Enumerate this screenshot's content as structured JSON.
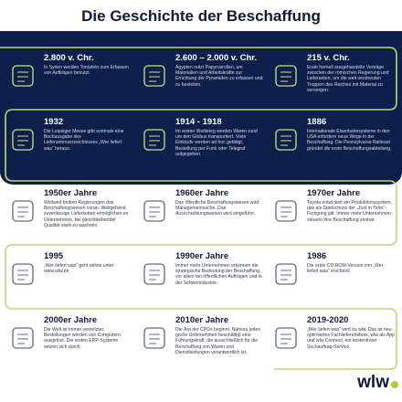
{
  "header": {
    "title": "Die Geschichte der Beschaffung"
  },
  "events": [
    {
      "date": "2.800 v. Chr.",
      "text": "In Syrien werden Tontafeln zum Erfassen von Aufträgen benutzt."
    },
    {
      "date": "2.600 – 2.000 v. Chr.",
      "text": "Ägypten nutzt Papyrusrollen, um Materialien und Arbeitskräfte zur Errichtung der Pyramiden zu erfassen und zu bestellen."
    },
    {
      "date": "215 v. Chr.",
      "text": "Erste formell ausgehandelte Verträge zwischen der römischen Regierung und Lieferanten, um die weit verstreuten Truppen des Reiches mit Material zu versorgen."
    },
    {
      "date": "1932",
      "text": "Die Leipziger Messe gibt erstmals eine Buchausgabe des Lieferantenverzeichnisses „Wer liefert was“ heraus."
    },
    {
      "date": "1914 - 1918",
      "text": "Im ersten Weltkrieg werden Waren rund um den Globus transportiert. Viele Einkäufe werden ad hoc getätigt, Bestellung per Funk oder Telegraf aufgegeben."
    },
    {
      "date": "1886",
      "text": "Internationale Eisenbahnsysteme in den USA erfordern neue Wege in der Beschaffung. Die Pennsylvania Railroad gründet die erste Beschaffungsabteilung."
    },
    {
      "date": "1950er Jahre",
      "text": "Weltweit treiben Regierungen das Beschaffungswesen voran. Weitgehend zuverlässige Lieferketten ermöglichen es Unternehmen, bei gleichbleibender Qualität stark zu wachsen."
    },
    {
      "date": "1960er Jahre",
      "text": "Das öffentliche Beschaffungswesen wird Managementsache. Das Ausschreibungswesen wird eingeführt."
    },
    {
      "date": "1970er Jahre",
      "text": "Toyota entwickelt ein Produktionssystem, das als Startschuss der „Just in Time“-Fertigung gilt. Immer mehr Unternehmen steuern ihre Beschaffung zentral."
    },
    {
      "date": "1995",
      "text": "„Wer liefert was“ geht online unter www.wlw.de."
    },
    {
      "date": "1990er Jahre",
      "text": "Immer mehr Unternehmen erkennen die strategische Bedeutung der Beschaffung, vor allem bei öffentlichen Aufträgen und in der Schwerindustrie."
    },
    {
      "date": "1986",
      "text": "Die erste CD-ROM-Version von „Wer liefert was“ erscheint."
    },
    {
      "date": "2000er Jahre",
      "text": "Die Welt ist immer vernetzter. Bestellungen werden von Computern ausgelöst. Die ersten ERP-Systeme setzen sich durch."
    },
    {
      "date": "2010er Jahre",
      "text": "Die Ära der CPOs beginnt. Nahezu jedes große Unternehmen beschäftigt eine Führungskraft, die ausschließlich für die Beschaffung von Waren und Dienstleistungen verantwortlich ist."
    },
    {
      "date": "2019-2020",
      "text": "„Wer liefert was“ wird zu wlw. Das ist neu: optimiertes Fachliefererlebnis, wlw als App und wlw Connect, ein kostenfreier Suchauftrag-Service."
    }
  ],
  "logo": "wlw"
}
